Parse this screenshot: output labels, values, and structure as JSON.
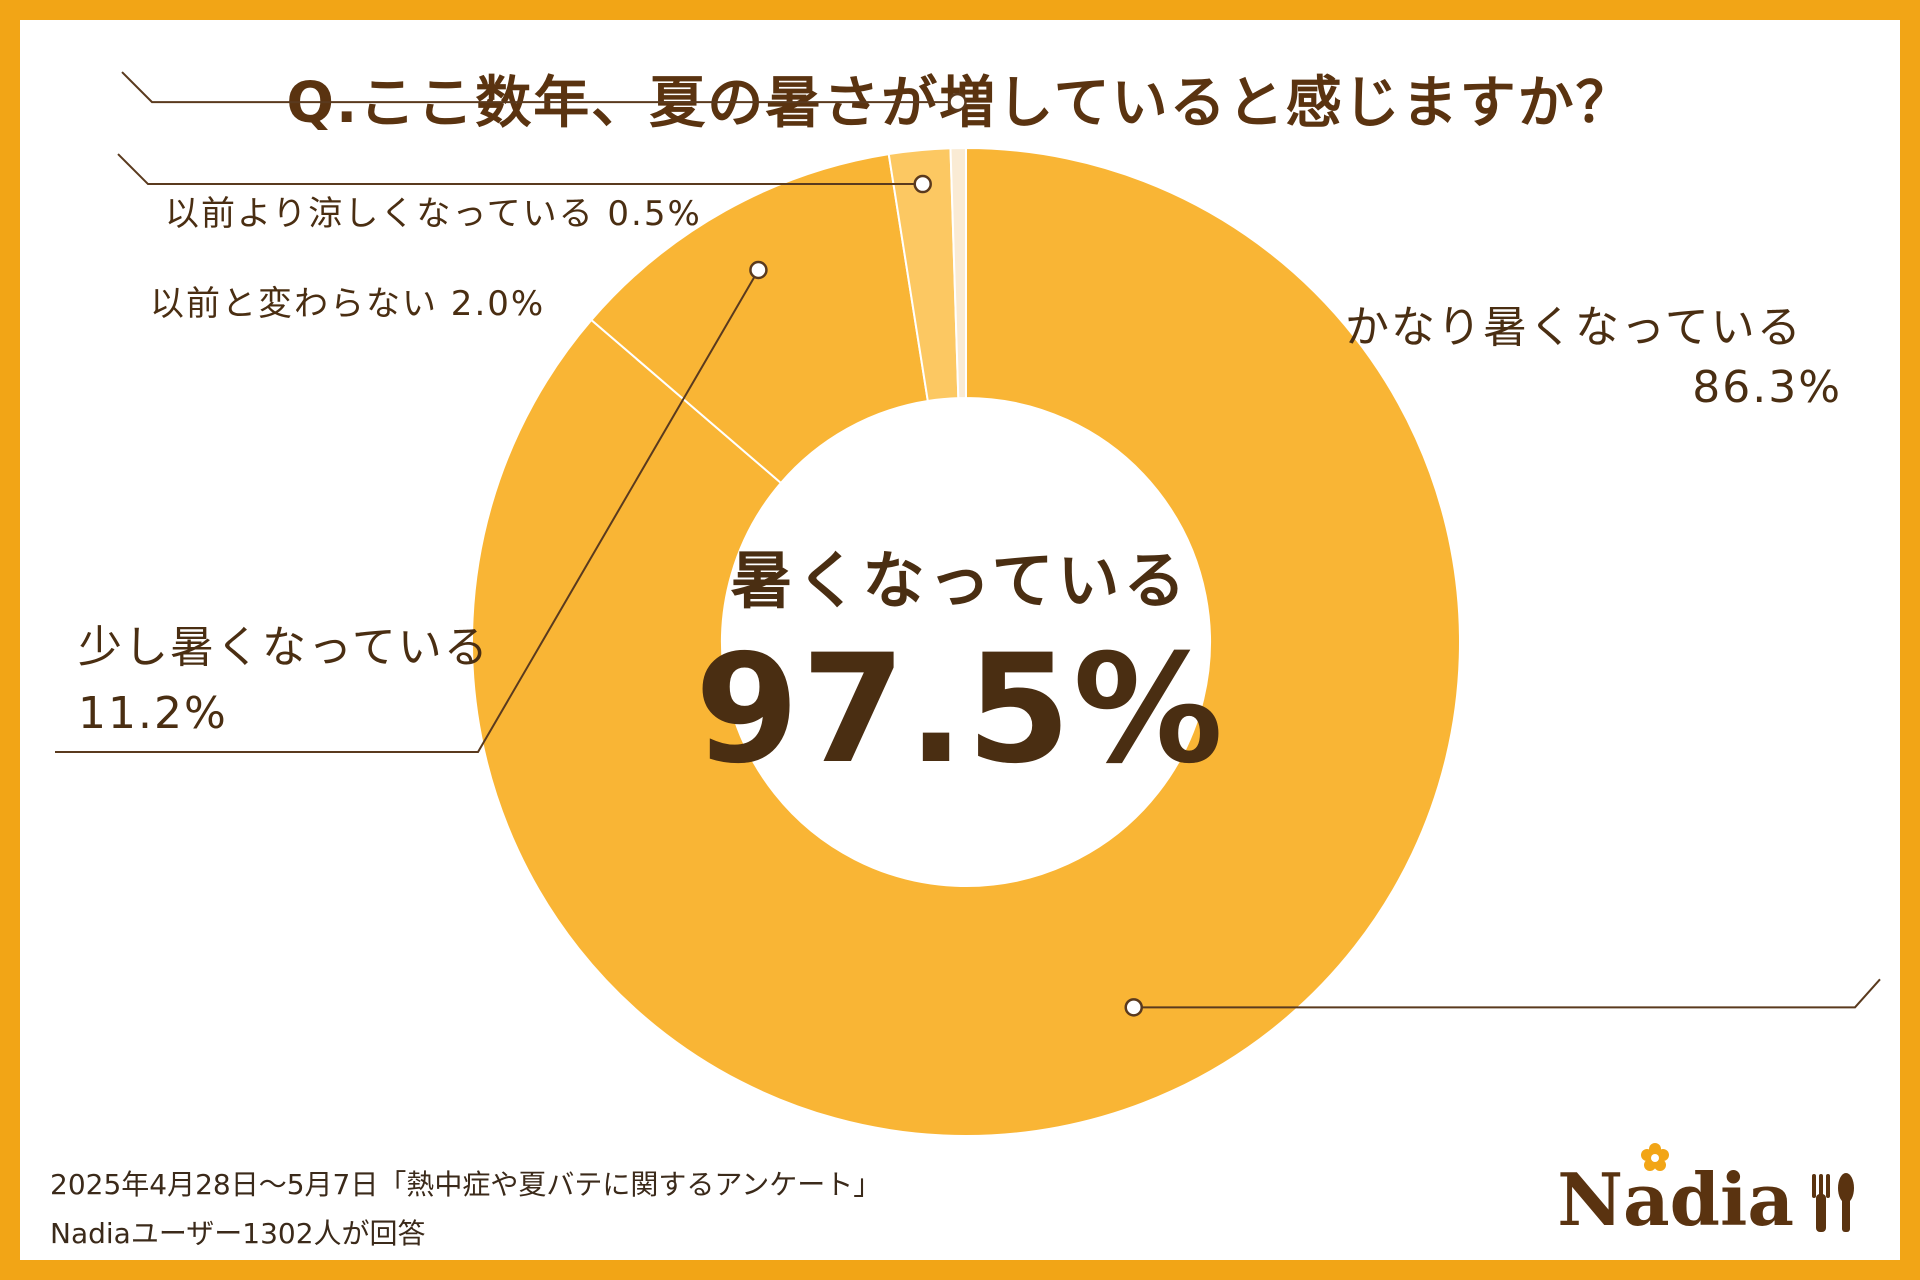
{
  "title": "Q.ここ数年、夏の暑さが増していると感じますか？",
  "chart_data": {
    "type": "pie",
    "title": "Q.ここ数年、夏の暑さが増していると感じますか？",
    "categories": [
      "かなり暑くなっている",
      "少し暑くなっている",
      "以前と変わらない",
      "以前より涼しくなっている"
    ],
    "values": [
      86.3,
      11.2,
      2.0,
      0.5
    ],
    "value_labels": [
      "86.3%",
      "11.2%",
      "2.0%",
      "0.5%"
    ],
    "colors": [
      "#F9B535",
      "#F9B535",
      "#FCC862",
      "#FAEBD4"
    ],
    "donut": true,
    "center_label": "暑くなっている",
    "center_value": "97.5%",
    "legend": "none"
  },
  "labels": {
    "cooler": "以前より涼しくなっている 0.5%",
    "same": "以前と変わらない  2.0%",
    "much_hotter_name": "かなり暑くなっている",
    "much_hotter_value": "86.3%",
    "slightly_hotter_name": "少し暑くなっている",
    "slightly_hotter_value": "11.2%"
  },
  "footnote": {
    "line1": "2025年4月28日～5月7日「熱中症や夏バテに関するアンケート」",
    "line2": "Nadiaユーザー1302人が回答"
  },
  "logo": {
    "text": "Nadia"
  },
  "colors": {
    "frame": "#F2A516",
    "text_brown": "#4A2E12",
    "accent_orange": "#F9B535"
  }
}
